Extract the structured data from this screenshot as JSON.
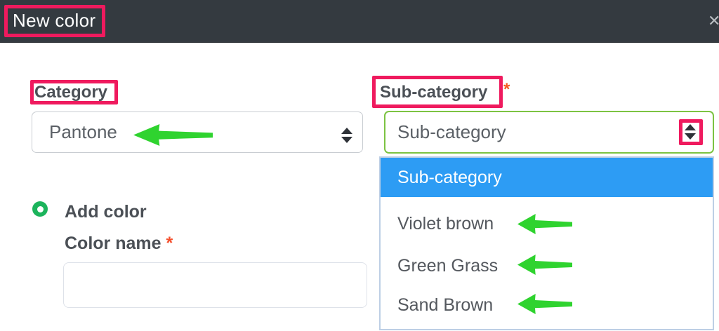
{
  "modal": {
    "title": "New color",
    "close_icon": "✕"
  },
  "form": {
    "category": {
      "label": "Category",
      "selected": "Pantone"
    },
    "sub_category": {
      "label": "Sub-category",
      "required_marker": "*",
      "selected": "Sub-category",
      "options": [
        "Sub-category",
        "Violet brown",
        "Green Grass",
        "Sand Brown"
      ],
      "highlighted_option": "Sub-category"
    },
    "add_color": {
      "radio_label": "Add color",
      "radio_selected": true,
      "color_name_label": "Color name",
      "required_marker": "*",
      "color_name_value": "",
      "color_name_placeholder": ""
    }
  },
  "annotations": {
    "highlight_color": "#ef1a5e",
    "arrow_color": "#2fd32f"
  },
  "colors": {
    "header_bg": "#343a40",
    "option_highlight_bg": "#2d9cf4",
    "select_focus_border": "#7cc342",
    "list_border": "#bdcfe5",
    "radio_green": "#1cb45c",
    "required_red": "#f4502e",
    "asterisk_orange": "#f4581e"
  }
}
